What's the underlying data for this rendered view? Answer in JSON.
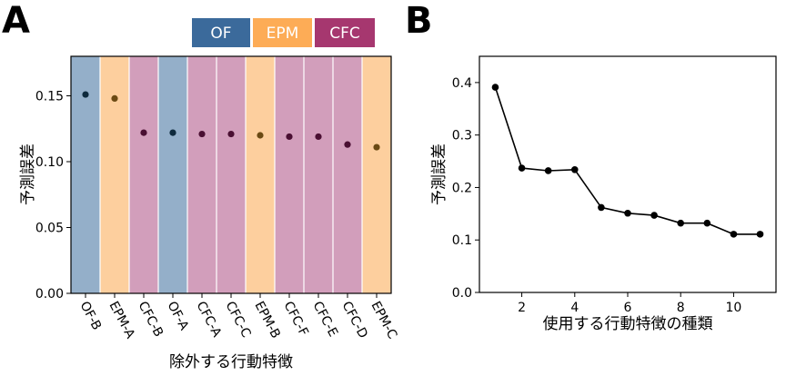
{
  "colors": {
    "OF": "#3b6a9b",
    "EPM": "#fdac56",
    "CFC": "#a6376f",
    "OF_bar": "#94afc9",
    "EPM_bar": "#fdcf9e",
    "CFC_bar": "#d29ebb",
    "OF_dot": "#0e2a3d",
    "EPM_dot": "#6b4a14",
    "CFC_dot": "#4a0f32",
    "line": "#000000"
  },
  "panel_a": {
    "letter": "A"
  },
  "panel_b": {
    "letter": "B"
  },
  "chart_data": [
    {
      "type": "bar",
      "panel": "A",
      "categories": [
        "OF-B",
        "EPM-A",
        "CFC-B",
        "OF-A",
        "CFC-A",
        "CFC-C",
        "EPM-B",
        "CFC-F",
        "CFC-E",
        "CFC-D",
        "EPM-C"
      ],
      "groups": [
        "OF",
        "EPM",
        "CFC",
        "OF",
        "CFC",
        "CFC",
        "EPM",
        "CFC",
        "CFC",
        "CFC",
        "EPM"
      ],
      "values": [
        0.151,
        0.148,
        0.122,
        0.122,
        0.121,
        0.121,
        0.12,
        0.119,
        0.119,
        0.113,
        0.111
      ],
      "xlabel": "除外する行動特徴",
      "ylabel": "予測誤差",
      "ylim": [
        0.0,
        0.18
      ],
      "yticks": [
        "0.00",
        "0.05",
        "0.10",
        "0.15"
      ],
      "legend": [
        "OF",
        "EPM",
        "CFC"
      ],
      "legend_position": "top-right"
    },
    {
      "type": "line",
      "panel": "B",
      "x": [
        1,
        2,
        3,
        4,
        5,
        6,
        7,
        8,
        9,
        10,
        11
      ],
      "y": [
        0.391,
        0.237,
        0.232,
        0.234,
        0.162,
        0.151,
        0.147,
        0.132,
        0.132,
        0.111,
        0.111
      ],
      "xlabel": "使用する行動特徴の種類",
      "ylabel": "予測誤差",
      "xlim": [
        0.4,
        11.6
      ],
      "ylim": [
        0.0,
        0.45
      ],
      "xticks": [
        "2",
        "4",
        "6",
        "8",
        "10"
      ],
      "yticks": [
        "0.0",
        "0.1",
        "0.2",
        "0.3",
        "0.4"
      ]
    }
  ]
}
